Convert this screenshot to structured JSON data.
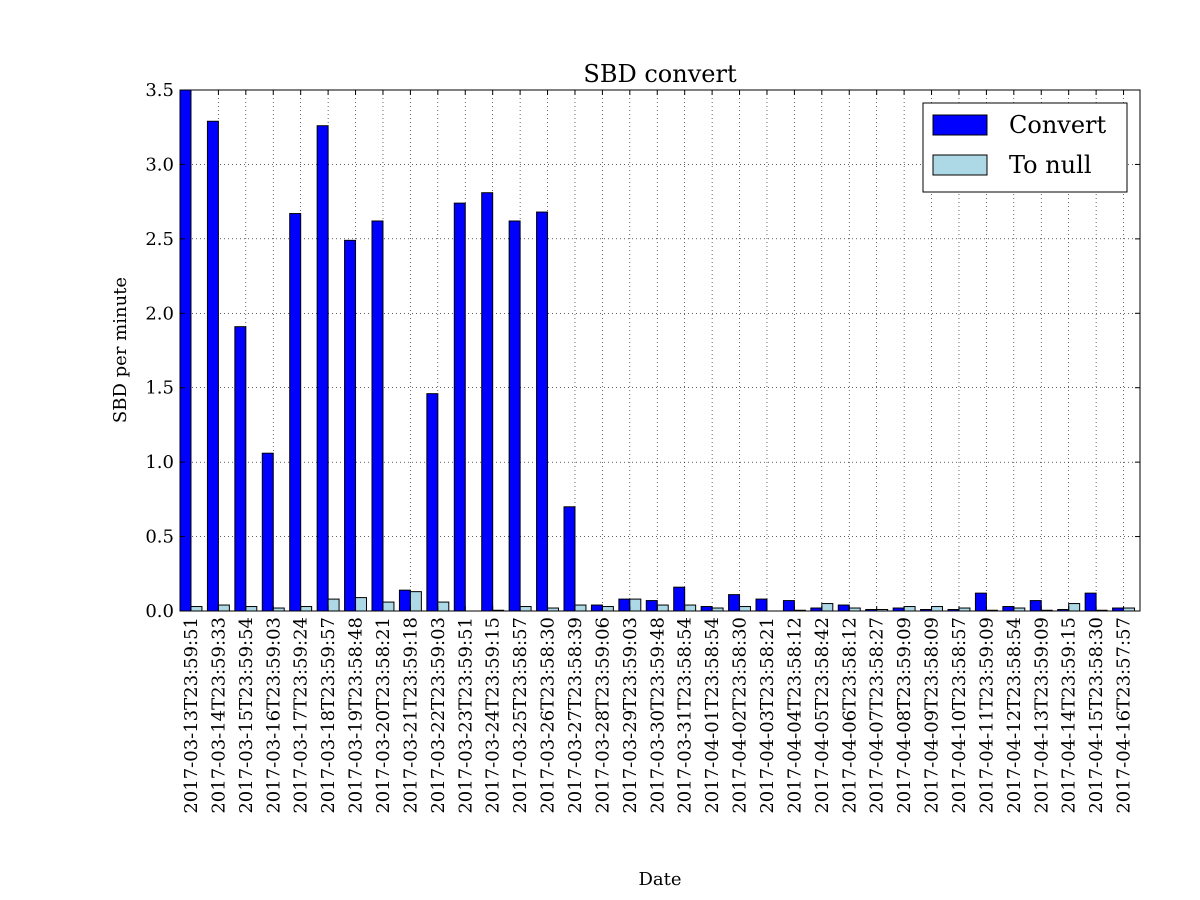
{
  "chart_data": {
    "type": "bar",
    "title": "SBD convert",
    "xlabel": "Date",
    "ylabel": "SBD per minute",
    "categories": [
      "2017-03-13T23:59:51",
      "2017-03-14T23:59:33",
      "2017-03-15T23:59:54",
      "2017-03-16T23:59:03",
      "2017-03-17T23:59:24",
      "2017-03-18T23:59:57",
      "2017-03-19T23:58:48",
      "2017-03-20T23:58:21",
      "2017-03-21T23:59:18",
      "2017-03-22T23:59:03",
      "2017-03-23T23:59:51",
      "2017-03-24T23:59:15",
      "2017-03-25T23:58:57",
      "2017-03-26T23:58:30",
      "2017-03-27T23:58:39",
      "2017-03-28T23:59:06",
      "2017-03-29T23:59:03",
      "2017-03-30T23:59:48",
      "2017-03-31T23:58:54",
      "2017-04-01T23:58:54",
      "2017-04-02T23:58:30",
      "2017-04-03T23:58:21",
      "2017-04-04T23:58:12",
      "2017-04-05T23:58:42",
      "2017-04-06T23:58:12",
      "2017-04-07T23:58:27",
      "2017-04-08T23:59:09",
      "2017-04-09T23:58:09",
      "2017-04-10T23:58:57",
      "2017-04-11T23:59:09",
      "2017-04-12T23:58:54",
      "2017-04-13T23:59:09",
      "2017-04-14T23:59:15",
      "2017-04-15T23:58:30",
      "2017-04-16T23:57:57"
    ],
    "series": [
      {
        "name": "Convert",
        "color": "#0000ff",
        "values": [
          3.55,
          3.29,
          1.91,
          1.06,
          2.67,
          3.26,
          2.49,
          2.62,
          0.14,
          1.46,
          2.74,
          2.81,
          2.62,
          2.68,
          0.7,
          0.04,
          0.08,
          0.07,
          0.16,
          0.03,
          0.11,
          0.08,
          0.07,
          0.02,
          0.04,
          0.01,
          0.02,
          0.01,
          0.01,
          0.12,
          0.03,
          0.07,
          0.01,
          0.12,
          0.02
        ]
      },
      {
        "name": "To null",
        "color": "#add8e6",
        "values": [
          0.03,
          0.04,
          0.03,
          0.02,
          0.03,
          0.08,
          0.09,
          0.06,
          0.13,
          0.06,
          0.0,
          0.005,
          0.03,
          0.02,
          0.04,
          0.03,
          0.08,
          0.04,
          0.04,
          0.02,
          0.03,
          0.0,
          0.005,
          0.05,
          0.02,
          0.01,
          0.03,
          0.03,
          0.02,
          0.005,
          0.02,
          0.005,
          0.05,
          0.005,
          0.02
        ]
      }
    ],
    "ylim": [
      0,
      3.5
    ],
    "yticks": [
      {
        "value": 0,
        "label": "0.0"
      },
      0.5,
      {
        "value": 1,
        "label": "1.0"
      },
      1.5,
      {
        "value": 2,
        "label": "2.0"
      },
      2.5,
      {
        "value": 3,
        "label": "3.0"
      },
      3.5
    ],
    "grid": true,
    "legend": "upper right"
  }
}
